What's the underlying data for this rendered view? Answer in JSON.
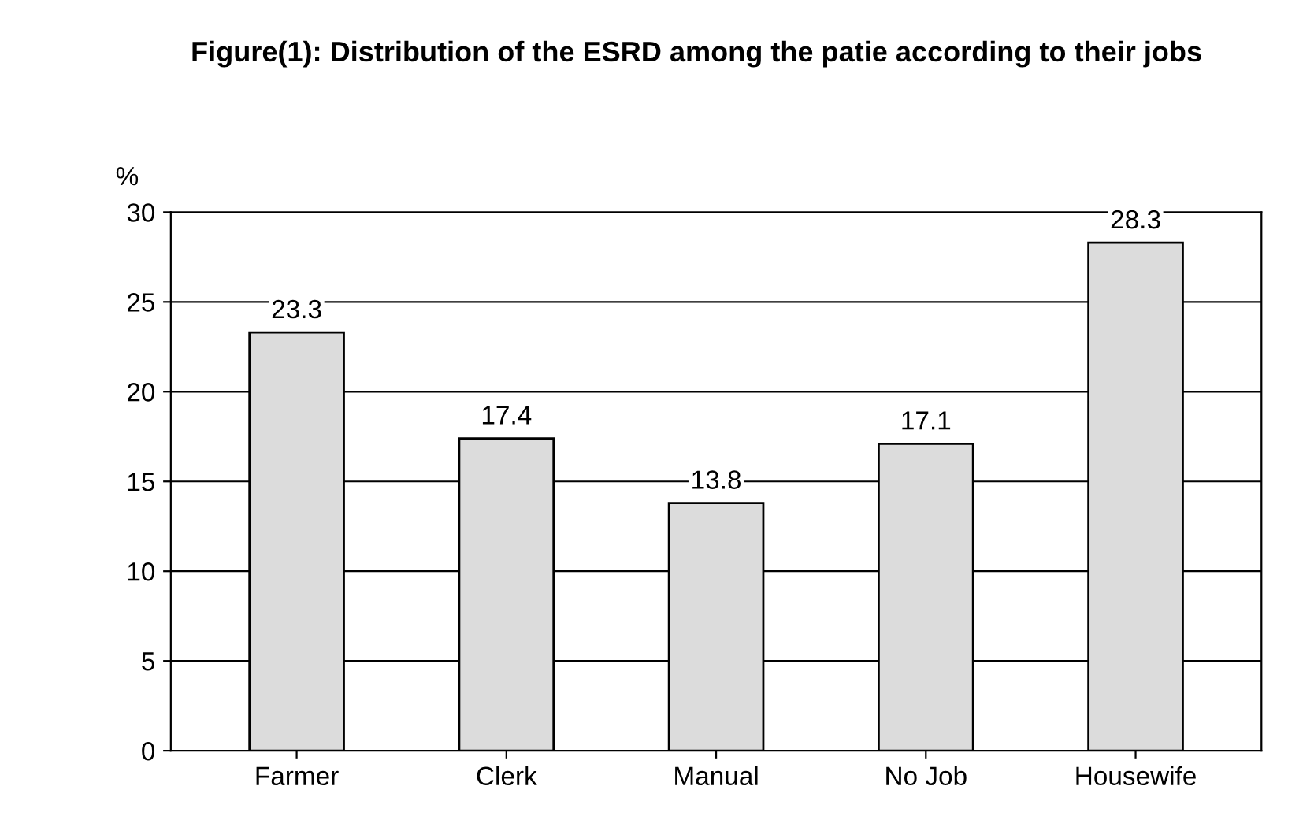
{
  "chart_data": {
    "type": "bar",
    "title": "Figure(1): Distribution of the ESRD among the patie according to their jobs",
    "ylabel": "%",
    "categories": [
      "Farmer",
      "Clerk",
      "Manual",
      "No Job",
      "Housewife"
    ],
    "values": [
      23.3,
      17.4,
      13.8,
      17.1,
      28.3
    ],
    "color": "#dcdcdc",
    "ylim": [
      0,
      30
    ],
    "yticks": [
      0,
      5,
      10,
      15,
      20,
      25,
      30
    ],
    "grid": "y",
    "data_labels": true
  }
}
